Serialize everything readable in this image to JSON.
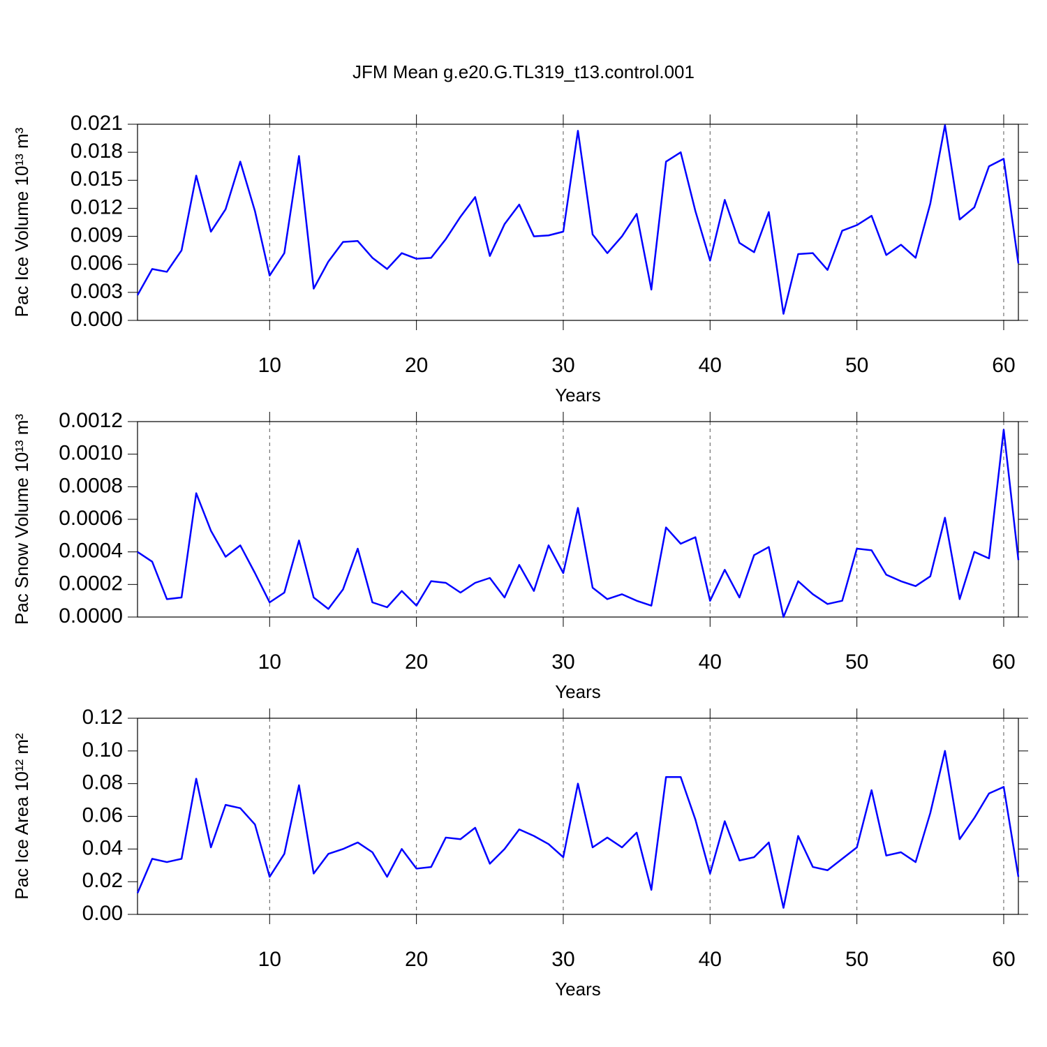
{
  "title": "JFM Mean g.e20.G.TL319_t13.control.001",
  "chart_data": [
    {
      "type": "line",
      "ylabel": "Pac Ice Volume 10¹³ m³",
      "xlabel": "Years",
      "x": [
        1,
        2,
        3,
        4,
        5,
        6,
        7,
        8,
        9,
        10,
        11,
        12,
        13,
        14,
        15,
        16,
        17,
        18,
        19,
        20,
        21,
        22,
        23,
        24,
        25,
        26,
        27,
        28,
        29,
        30,
        31,
        32,
        33,
        34,
        35,
        36,
        37,
        38,
        39,
        40,
        41,
        42,
        43,
        44,
        45,
        46,
        47,
        48,
        49,
        50,
        51,
        52,
        53,
        54,
        55,
        56,
        57,
        58,
        59,
        60,
        61
      ],
      "series": [
        {
          "color": "#0000ff",
          "values": [
            0.0027,
            0.0055,
            0.0052,
            0.0075,
            0.0155,
            0.0095,
            0.0119,
            0.017,
            0.0117,
            0.0048,
            0.0072,
            0.0176,
            0.0034,
            0.0063,
            0.0084,
            0.0085,
            0.0067,
            0.0055,
            0.0072,
            0.0066,
            0.0067,
            0.0087,
            0.0111,
            0.0132,
            0.0069,
            0.0103,
            0.0124,
            0.009,
            0.0091,
            0.0095,
            0.0203,
            0.0092,
            0.0072,
            0.009,
            0.0114,
            0.0033,
            0.017,
            0.018,
            0.0117,
            0.0064,
            0.0129,
            0.0083,
            0.0073,
            0.0116,
            0.0007,
            0.0071,
            0.0072,
            0.0054,
            0.0096,
            0.0102,
            0.0112,
            0.007,
            0.0081,
            0.0067,
            0.0125,
            0.0209,
            0.0108,
            0.0121,
            0.0165,
            0.0173,
            0.0061
          ]
        }
      ],
      "xlim": [
        1,
        61
      ],
      "xticks": [
        10,
        20,
        30,
        40,
        50,
        60
      ],
      "ylim": [
        0,
        0.021
      ],
      "yticks": [
        {
          "value": 0,
          "label": "0.000"
        },
        0.003,
        0.006,
        0.009,
        0.012,
        0.015,
        0.018,
        0.021
      ],
      "grid": "x"
    },
    {
      "type": "line",
      "ylabel": "Pac Snow Volume 10¹³ m³",
      "xlabel": "Years",
      "x": [
        1,
        2,
        3,
        4,
        5,
        6,
        7,
        8,
        9,
        10,
        11,
        12,
        13,
        14,
        15,
        16,
        17,
        18,
        19,
        20,
        21,
        22,
        23,
        24,
        25,
        26,
        27,
        28,
        29,
        30,
        31,
        32,
        33,
        34,
        35,
        36,
        37,
        38,
        39,
        40,
        41,
        42,
        43,
        44,
        45,
        46,
        47,
        48,
        49,
        50,
        51,
        52,
        53,
        54,
        55,
        56,
        57,
        58,
        59,
        60,
        61
      ],
      "series": [
        {
          "color": "#0000ff",
          "values": [
            0.0004,
            0.00034,
            0.00011,
            0.00012,
            0.00076,
            0.00053,
            0.00037,
            0.00044,
            0.00027,
            9e-05,
            0.00015,
            0.00047,
            0.00012,
            5e-05,
            0.00017,
            0.00042,
            9e-05,
            6e-05,
            0.00016,
            7e-05,
            0.00022,
            0.00021,
            0.00015,
            0.00021,
            0.00024,
            0.00012,
            0.00032,
            0.00016,
            0.00044,
            0.00027,
            0.00067,
            0.00018,
            0.00011,
            0.00014,
            0.0001,
            7e-05,
            0.00055,
            0.00045,
            0.00049,
            0.0001,
            0.00029,
            0.00012,
            0.00038,
            0.00043,
            0.0,
            0.00022,
            0.00014,
            8e-05,
            0.0001,
            0.00042,
            0.00041,
            0.00026,
            0.00022,
            0.00019,
            0.00025,
            0.00061,
            0.00011,
            0.0004,
            0.00036,
            0.00115,
            0.00035
          ]
        }
      ],
      "xlim": [
        1,
        61
      ],
      "xticks": [
        10,
        20,
        30,
        40,
        50,
        60
      ],
      "ylim": [
        0,
        0.0012
      ],
      "yticks": [
        {
          "value": 0,
          "label": "0.0000"
        },
        0.0002,
        0.0004,
        0.0006,
        0.0008,
        {
          "value": 0.001,
          "label": "0.0010"
        },
        0.0012
      ],
      "grid": "x"
    },
    {
      "type": "line",
      "ylabel": "Pac Ice Area 10¹² m²",
      "xlabel": "Years",
      "x": [
        1,
        2,
        3,
        4,
        5,
        6,
        7,
        8,
        9,
        10,
        11,
        12,
        13,
        14,
        15,
        16,
        17,
        18,
        19,
        20,
        21,
        22,
        23,
        24,
        25,
        26,
        27,
        28,
        29,
        30,
        31,
        32,
        33,
        34,
        35,
        36,
        37,
        38,
        39,
        40,
        41,
        42,
        43,
        44,
        45,
        46,
        47,
        48,
        49,
        50,
        51,
        52,
        53,
        54,
        55,
        56,
        57,
        58,
        59,
        60,
        61
      ],
      "series": [
        {
          "color": "#0000ff",
          "values": [
            0.013,
            0.034,
            0.032,
            0.034,
            0.083,
            0.041,
            0.067,
            0.065,
            0.055,
            0.023,
            0.037,
            0.079,
            0.025,
            0.037,
            0.04,
            0.044,
            0.038,
            0.023,
            0.04,
            0.028,
            0.029,
            0.047,
            0.046,
            0.053,
            0.031,
            0.04,
            0.052,
            0.048,
            0.043,
            0.035,
            0.08,
            0.041,
            0.047,
            0.041,
            0.05,
            0.015,
            0.084,
            0.084,
            0.058,
            0.025,
            0.057,
            0.033,
            0.035,
            0.044,
            0.004,
            0.048,
            0.029,
            0.027,
            0.034,
            0.041,
            0.076,
            0.036,
            0.038,
            0.032,
            0.062,
            0.1,
            0.046,
            0.059,
            0.074,
            0.078,
            0.023
          ]
        }
      ],
      "xlim": [
        1,
        61
      ],
      "xticks": [
        10,
        20,
        30,
        40,
        50,
        60
      ],
      "ylim": [
        0,
        0.12
      ],
      "yticks": [
        {
          "value": 0,
          "label": "0.00"
        },
        0.02,
        0.04,
        0.06,
        0.08,
        {
          "value": 0.1,
          "label": "0.10"
        },
        0.12
      ],
      "grid": "x"
    }
  ]
}
